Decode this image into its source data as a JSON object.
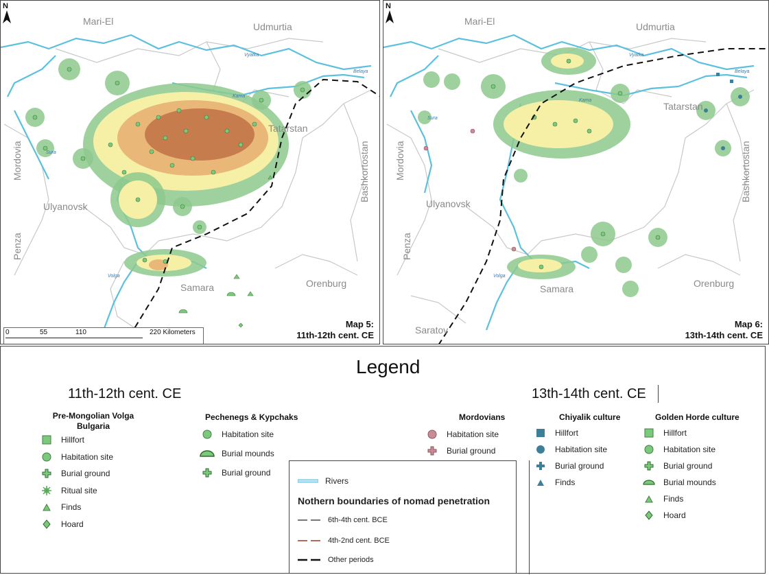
{
  "maps": [
    {
      "id": "map5",
      "title_line1": "Map 5:",
      "title_line2": "11th-12th cent. CE",
      "north": "N",
      "regions": [
        "Mari-El",
        "Udmurtia",
        "Tatarstan",
        "Mordovia",
        "Ulyanovsk",
        "Penza",
        "Samara",
        "Orenburg",
        "Bashkortostan"
      ],
      "rivers": [
        "Vyatka",
        "Belaya",
        "Kama",
        "Sura",
        "Volga"
      ],
      "scale": {
        "labels": [
          "0",
          "55",
          "110",
          "220 Kilometers"
        ]
      }
    },
    {
      "id": "map6",
      "title_line1": "Map 6:",
      "title_line2": "13th-14th cent. CE",
      "north": "N",
      "regions": [
        "Mari-El",
        "Udmurtia",
        "Tatarstan",
        "Mordovia",
        "Ulyanovsk",
        "Penza",
        "Samara",
        "Orenburg",
        "Bashkortostan",
        "Saratov"
      ],
      "rivers": [
        "Vyatka",
        "Belaya",
        "Kama",
        "Sura",
        "Volga"
      ]
    }
  ],
  "legend": {
    "title": "Legend",
    "period_left": "11th-12th cent. CE",
    "period_right": "13th-14th cent. CE",
    "groups": [
      {
        "name": "Pre-Mongolian Volga Bulgaria",
        "items": [
          {
            "label": "Hillfort",
            "symbol": "square-green"
          },
          {
            "label": "Habitation site",
            "symbol": "circle-green"
          },
          {
            "label": "Burial ground",
            "symbol": "cross-green"
          },
          {
            "label": "Ritual site",
            "symbol": "star-green"
          },
          {
            "label": "Finds",
            "symbol": "triangle-green"
          },
          {
            "label": "Hoard",
            "symbol": "diamond-green"
          }
        ]
      },
      {
        "name": "Pechenegs & Kypchaks",
        "items": [
          {
            "label": "Habitation site",
            "symbol": "circle-green"
          },
          {
            "label": "Burial mounds",
            "symbol": "mound-green"
          },
          {
            "label": "Burial ground",
            "symbol": "cross-green"
          }
        ]
      },
      {
        "name": "Mordovians",
        "items": [
          {
            "label": "Habitation site",
            "symbol": "circle-pink"
          },
          {
            "label": "Burial ground",
            "symbol": "cross-pink"
          }
        ]
      },
      {
        "name": "Chiyalik culture",
        "items": [
          {
            "label": "Hillfort",
            "symbol": "square-teal"
          },
          {
            "label": "Habitation site",
            "symbol": "circle-teal"
          },
          {
            "label": "Burial ground",
            "symbol": "cross-teal"
          },
          {
            "label": "Finds",
            "symbol": "triangle-teal"
          }
        ]
      },
      {
        "name": "Golden Horde culture",
        "items": [
          {
            "label": "Hillfort",
            "symbol": "square-green"
          },
          {
            "label": "Habitation site",
            "symbol": "circle-green"
          },
          {
            "label": "Burial ground",
            "symbol": "cross-green"
          },
          {
            "label": "Burial mounds",
            "symbol": "mound-green"
          },
          {
            "label": "Finds",
            "symbol": "triangle-green"
          },
          {
            "label": "Hoard",
            "symbol": "diamond-green"
          }
        ]
      }
    ],
    "rivers_label": "Rivers",
    "boundaries_title": "Nothern boundaries of nomad penetration",
    "boundaries": [
      {
        "label": "6th-4th cent. BCE",
        "color": "#777777"
      },
      {
        "label": "4th-2nd cent. BCE",
        "color": "#b06a55"
      },
      {
        "label": "Other periods",
        "color": "#111111"
      }
    ]
  },
  "colors": {
    "river": "#5bc0de",
    "density_light": "#f6efa6",
    "density_mid": "#e9b777",
    "density_dark": "#b9683f",
    "buffer": "#8dc98d",
    "site": "#7cc87c",
    "mordovian": "#c98b95",
    "chiyalik": "#3d7f99",
    "boundary_gray": "#bdbdbd"
  }
}
